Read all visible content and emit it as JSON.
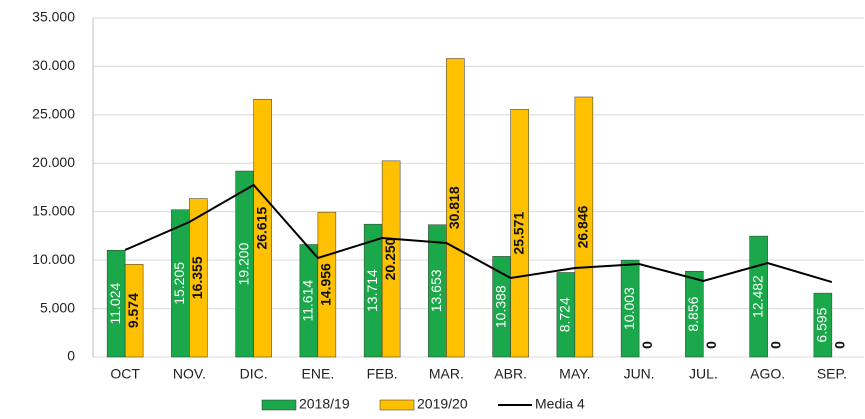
{
  "chart_data": {
    "type": "bar",
    "categories": [
      "OCT",
      "NOV.",
      "DIC.",
      "ENE.",
      "FEB.",
      "MAR.",
      "ABR.",
      "MAY.",
      "JUN.",
      "JUL.",
      "AGO.",
      "SEP."
    ],
    "series": [
      {
        "name": "2018/19",
        "color": "#1aa84a",
        "values": [
          11024,
          15205,
          19200,
          11614,
          13714,
          13653,
          10388,
          8724,
          10003,
          8856,
          12482,
          6595
        ],
        "value_labels": [
          "11.024",
          "15.205",
          "19.200",
          "11.614",
          "13.714",
          "13.653",
          "10.388",
          "8.724",
          "10.003",
          "8.856",
          "12.482",
          "6.595"
        ]
      },
      {
        "name": "2019/20",
        "color": "#ffc000",
        "values": [
          9574,
          16355,
          26615,
          14956,
          20250,
          30818,
          25571,
          26846,
          0,
          0,
          0,
          0
        ],
        "value_labels": [
          "9.574",
          "16.355",
          "26.615",
          "14.956",
          "20.250",
          "30.818",
          "25.571",
          "26.846",
          "0",
          "0",
          "0",
          "0"
        ]
      },
      {
        "name": "Media 4",
        "type": "line",
        "color": "#000000",
        "values": [
          11050,
          13940,
          17760,
          10220,
          12290,
          11770,
          8160,
          9190,
          9600,
          7850,
          9700,
          7740
        ]
      }
    ],
    "ylim": [
      0,
      35000
    ],
    "yticks": [
      0,
      {
        "value": 5000,
        "label": "5.000"
      },
      {
        "value": 10000,
        "label": "10.000"
      },
      {
        "value": 15000,
        "label": "15.000"
      },
      {
        "value": 20000,
        "label": "20.000"
      },
      {
        "value": 25000,
        "label": "25.000"
      },
      {
        "value": 30000,
        "label": "30.000"
      },
      {
        "value": 35000,
        "label": "35.000"
      }
    ],
    "grid": true,
    "legend": "bottom"
  }
}
